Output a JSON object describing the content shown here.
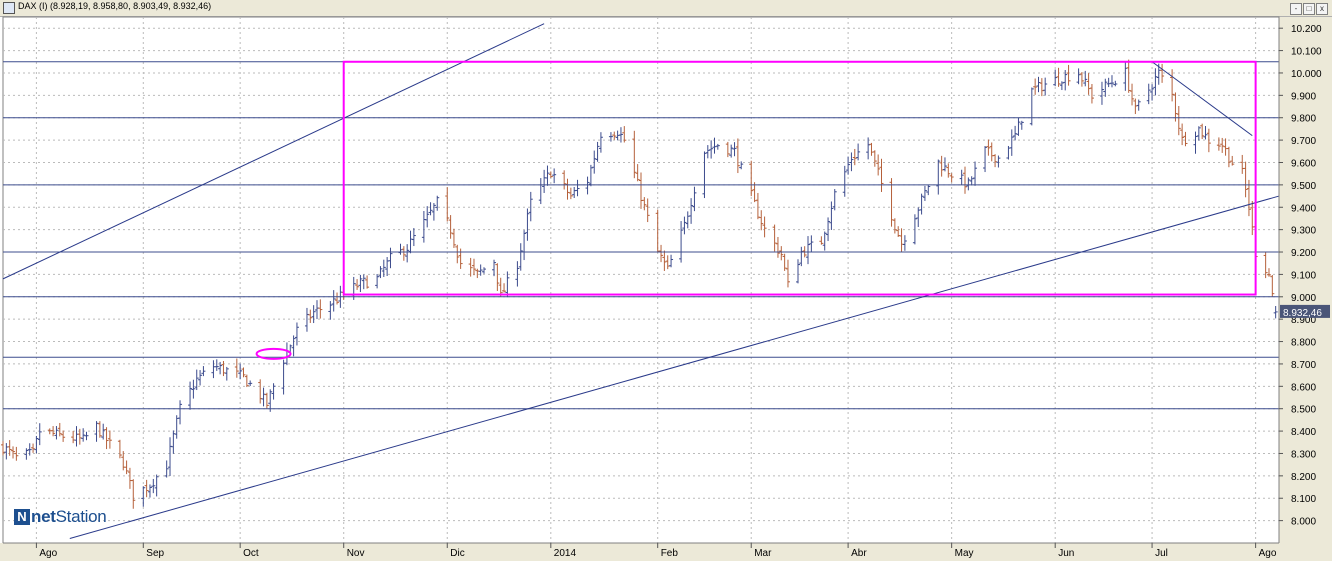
{
  "window": {
    "title": "DAX (I) (8.928,19, 8.958,80, 8.903,49, 8.932,46)",
    "buttons": [
      "-",
      "□",
      "x"
    ]
  },
  "branding": {
    "logo_mark": "N",
    "logo_text_bold": "net",
    "logo_text": "Station"
  },
  "colors": {
    "up_bar": "#3b4a8c",
    "down_bar": "#b5603a",
    "trendline": "#2a3a8a",
    "hline": "#3d4d8e",
    "rectangle": "#ff00ff",
    "grid": "#bbbbbb",
    "axis_bg": "#ece9d8",
    "price_label_bg": "#4a5578"
  },
  "chart_data": {
    "type": "ohlc",
    "title": "DAX (I)",
    "last": {
      "open": 8928.19,
      "high": 8958.8,
      "low": 8903.49,
      "close": 8932.46
    },
    "last_price_label": "8.932,46",
    "ylim": [
      7900,
      10250
    ],
    "yticks": [
      8000,
      8100,
      8200,
      8300,
      8400,
      8500,
      8600,
      8700,
      8800,
      8900,
      9000,
      9100,
      9200,
      9300,
      9400,
      9500,
      9600,
      9700,
      9800,
      9900,
      10000,
      10100,
      10200
    ],
    "ytick_labels": [
      "8.000",
      "8.100",
      "8.200",
      "8.300",
      "8.400",
      "8.500",
      "8.600",
      "8.700",
      "8.800",
      "8.900",
      "9.000",
      "9.100",
      "9.200",
      "9.300",
      "9.400",
      "9.500",
      "9.600",
      "9.700",
      "9.800",
      "9.900",
      "10.000",
      "10.100",
      "10.200"
    ],
    "xlim": [
      "2013-07-22",
      "2014-08-08"
    ],
    "xticks": [
      {
        "date": "2013-08-01",
        "label": "Ago"
      },
      {
        "date": "2013-09-02",
        "label": "Sep"
      },
      {
        "date": "2013-10-01",
        "label": "Oct"
      },
      {
        "date": "2013-11-01",
        "label": "Nov"
      },
      {
        "date": "2013-12-02",
        "label": "Dic"
      },
      {
        "date": "2014-01-02",
        "label": "2014"
      },
      {
        "date": "2014-02-03",
        "label": "Feb"
      },
      {
        "date": "2014-03-03",
        "label": "Mar"
      },
      {
        "date": "2014-04-01",
        "label": "Abr"
      },
      {
        "date": "2014-05-02",
        "label": "May"
      },
      {
        "date": "2014-06-02",
        "label": "Jun"
      },
      {
        "date": "2014-07-01",
        "label": "Jul"
      },
      {
        "date": "2014-08-01",
        "label": "Ago"
      }
    ],
    "grid": true,
    "horizontal_lines": [
      10050,
      9800,
      9500,
      9200,
      9000,
      8730,
      8500
    ],
    "rectangle": {
      "x0": "2013-11-01",
      "x1": "2014-08-01",
      "y0": 9010,
      "y1": 10050
    },
    "trendlines": [
      {
        "start": [
          "2013-07-22",
          9080
        ],
        "end": [
          "2013-12-31",
          10220
        ]
      },
      {
        "start": [
          "2013-08-11",
          7920
        ],
        "end": [
          "2014-08-08",
          9450
        ]
      },
      {
        "start": [
          "2014-07-01",
          10050
        ],
        "end": [
          "2014-07-31",
          9720
        ]
      }
    ],
    "marker_ellipse": {
      "date": "2013-10-11",
      "value": 8745
    },
    "anchors": [
      [
        "2013-07-22",
        8330
      ],
      [
        "2013-07-26",
        8280
      ],
      [
        "2013-07-31",
        8300
      ],
      [
        "2013-08-02",
        8400
      ],
      [
        "2013-08-08",
        8380
      ],
      [
        "2013-08-15",
        8360
      ],
      [
        "2013-08-19",
        8420
      ],
      [
        "2013-08-23",
        8340
      ],
      [
        "2013-08-27",
        8260
      ],
      [
        "2013-08-30",
        8110
      ],
      [
        "2013-09-04",
        8160
      ],
      [
        "2013-09-09",
        8250
      ],
      [
        "2013-09-13",
        8500
      ],
      [
        "2013-09-18",
        8630
      ],
      [
        "2013-09-23",
        8690
      ],
      [
        "2013-09-27",
        8670
      ],
      [
        "2013-10-02",
        8640
      ],
      [
        "2013-10-07",
        8560
      ],
      [
        "2013-10-09",
        8520
      ],
      [
        "2013-10-14",
        8720
      ],
      [
        "2013-10-18",
        8850
      ],
      [
        "2013-10-23",
        8930
      ],
      [
        "2013-10-28",
        8970
      ],
      [
        "2013-11-01",
        9010
      ],
      [
        "2013-11-06",
        9060
      ],
      [
        "2013-11-11",
        9080
      ],
      [
        "2013-11-15",
        9170
      ],
      [
        "2013-11-20",
        9220
      ],
      [
        "2013-11-25",
        9330
      ],
      [
        "2013-11-29",
        9420
      ],
      [
        "2013-12-03",
        9300
      ],
      [
        "2013-12-06",
        9150
      ],
      [
        "2013-12-11",
        9100
      ],
      [
        "2013-12-16",
        9160
      ],
      [
        "2013-12-18",
        9000
      ],
      [
        "2013-12-23",
        9150
      ],
      [
        "2013-12-27",
        9420
      ],
      [
        "2014-01-02",
        9560
      ],
      [
        "2014-01-08",
        9450
      ],
      [
        "2014-01-13",
        9520
      ],
      [
        "2014-01-17",
        9730
      ],
      [
        "2014-01-22",
        9740
      ],
      [
        "2014-01-24",
        9700
      ],
      [
        "2014-01-29",
        9450
      ],
      [
        "2014-02-03",
        9200
      ],
      [
        "2014-02-06",
        9120
      ],
      [
        "2014-02-11",
        9320
      ],
      [
        "2014-02-17",
        9650
      ],
      [
        "2014-02-21",
        9680
      ],
      [
        "2014-02-26",
        9650
      ],
      [
        "2014-03-03",
        9450
      ],
      [
        "2014-03-07",
        9300
      ],
      [
        "2014-03-12",
        9190
      ],
      [
        "2014-03-14",
        9050
      ],
      [
        "2014-03-18",
        9200
      ],
      [
        "2014-03-24",
        9250
      ],
      [
        "2014-03-28",
        9460
      ],
      [
        "2014-04-02",
        9620
      ],
      [
        "2014-04-07",
        9680
      ],
      [
        "2014-04-10",
        9550
      ],
      [
        "2014-04-15",
        9320
      ],
      [
        "2014-04-17",
        9240
      ],
      [
        "2014-04-23",
        9430
      ],
      [
        "2014-04-28",
        9600
      ],
      [
        "2014-05-02",
        9550
      ],
      [
        "2014-05-07",
        9500
      ],
      [
        "2014-05-12",
        9650
      ],
      [
        "2014-05-16",
        9620
      ],
      [
        "2014-05-21",
        9720
      ],
      [
        "2014-05-26",
        9920
      ],
      [
        "2014-05-30",
        9950
      ],
      [
        "2014-06-04",
        9980
      ],
      [
        "2014-06-09",
        10000
      ],
      [
        "2014-06-13",
        9900
      ],
      [
        "2014-06-18",
        9950
      ],
      [
        "2014-06-23",
        10000
      ],
      [
        "2014-06-26",
        9830
      ],
      [
        "2014-07-01",
        9950
      ],
      [
        "2014-07-03",
        10000
      ],
      [
        "2014-07-07",
        9900
      ],
      [
        "2014-07-10",
        9700
      ],
      [
        "2014-07-15",
        9750
      ],
      [
        "2014-07-18",
        9700
      ],
      [
        "2014-07-22",
        9680
      ],
      [
        "2014-07-25",
        9600
      ],
      [
        "2014-07-28",
        9550
      ],
      [
        "2014-07-30",
        9400
      ],
      [
        "2014-08-01",
        9200
      ],
      [
        "2014-08-05",
        9100
      ],
      [
        "2014-08-07",
        8932
      ]
    ]
  }
}
